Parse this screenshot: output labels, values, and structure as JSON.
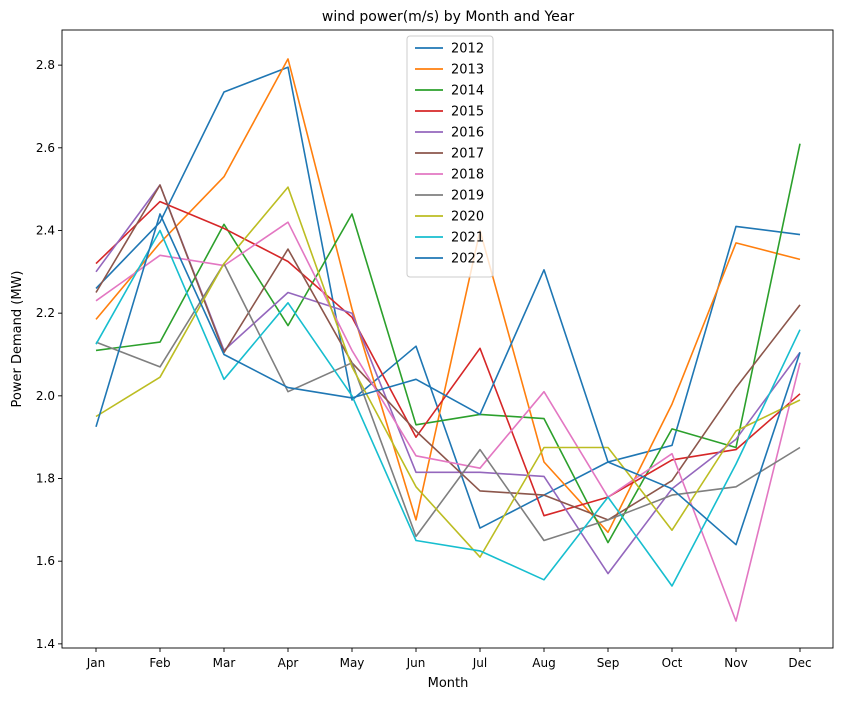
{
  "chart_data": {
    "type": "line",
    "title": "wind power(m/s) by Month and Year",
    "xlabel": "Month",
    "ylabel": "Power Demand (MW)",
    "categories": [
      "Jan",
      "Feb",
      "Mar",
      "Apr",
      "May",
      "Jun",
      "Jul",
      "Aug",
      "Sep",
      "Oct",
      "Nov",
      "Dec"
    ],
    "ylim": [
      1.39,
      2.885
    ],
    "yticks": [
      "1.4",
      "1.6",
      "1.8",
      "2.0",
      "2.2",
      "2.4",
      "2.6",
      "2.8"
    ],
    "grid": false,
    "legend_position": "top-center",
    "series": [
      {
        "name": "2012",
        "color": "#1f77b4",
        "values": [
          2.26,
          2.42,
          2.735,
          2.795,
          1.99,
          2.12,
          1.68,
          1.76,
          1.84,
          1.88,
          2.41,
          2.39
        ]
      },
      {
        "name": "2013",
        "color": "#ff7f0e",
        "values": [
          2.185,
          2.37,
          2.53,
          2.815,
          2.21,
          1.7,
          2.4,
          1.84,
          1.67,
          1.98,
          2.37,
          2.33
        ]
      },
      {
        "name": "2014",
        "color": "#2ca02c",
        "values": [
          2.11,
          2.13,
          2.415,
          2.17,
          2.44,
          1.93,
          1.955,
          1.945,
          1.645,
          1.92,
          1.875,
          2.61
        ]
      },
      {
        "name": "2015",
        "color": "#d62728",
        "values": [
          2.32,
          2.47,
          2.405,
          2.325,
          2.19,
          1.9,
          2.115,
          1.71,
          1.755,
          1.845,
          1.87,
          2.005
        ]
      },
      {
        "name": "2016",
        "color": "#9467bd",
        "values": [
          2.3,
          2.51,
          2.11,
          2.25,
          2.2,
          1.815,
          1.815,
          1.805,
          1.57,
          1.775,
          1.895,
          2.105
        ]
      },
      {
        "name": "2017",
        "color": "#8c564b",
        "values": [
          2.25,
          2.51,
          2.105,
          2.355,
          2.08,
          1.915,
          1.77,
          1.76,
          1.7,
          1.795,
          2.02,
          2.22
        ]
      },
      {
        "name": "2018",
        "color": "#e377c2",
        "values": [
          2.23,
          2.34,
          2.315,
          2.42,
          2.11,
          1.855,
          1.825,
          2.01,
          1.755,
          1.86,
          1.455,
          2.08
        ]
      },
      {
        "name": "2019",
        "color": "#7f7f7f",
        "values": [
          2.13,
          2.07,
          2.32,
          2.01,
          2.08,
          1.66,
          1.87,
          1.65,
          1.7,
          1.76,
          1.78,
          1.875
        ]
      },
      {
        "name": "2020",
        "color": "#bcbd22",
        "values": [
          1.95,
          2.045,
          2.32,
          2.505,
          2.07,
          1.78,
          1.61,
          1.875,
          1.875,
          1.675,
          1.915,
          1.99
        ]
      },
      {
        "name": "2021",
        "color": "#17becf",
        "values": [
          2.125,
          2.4,
          2.04,
          2.225,
          2.0,
          1.65,
          1.625,
          1.555,
          1.755,
          1.54,
          1.835,
          2.16
        ]
      },
      {
        "name": "2022",
        "color": "#1f77b4",
        "values": [
          1.925,
          2.44,
          2.1,
          2.02,
          1.995,
          2.04,
          1.955,
          2.305,
          1.84,
          1.775,
          1.64,
          2.105
        ]
      }
    ]
  }
}
